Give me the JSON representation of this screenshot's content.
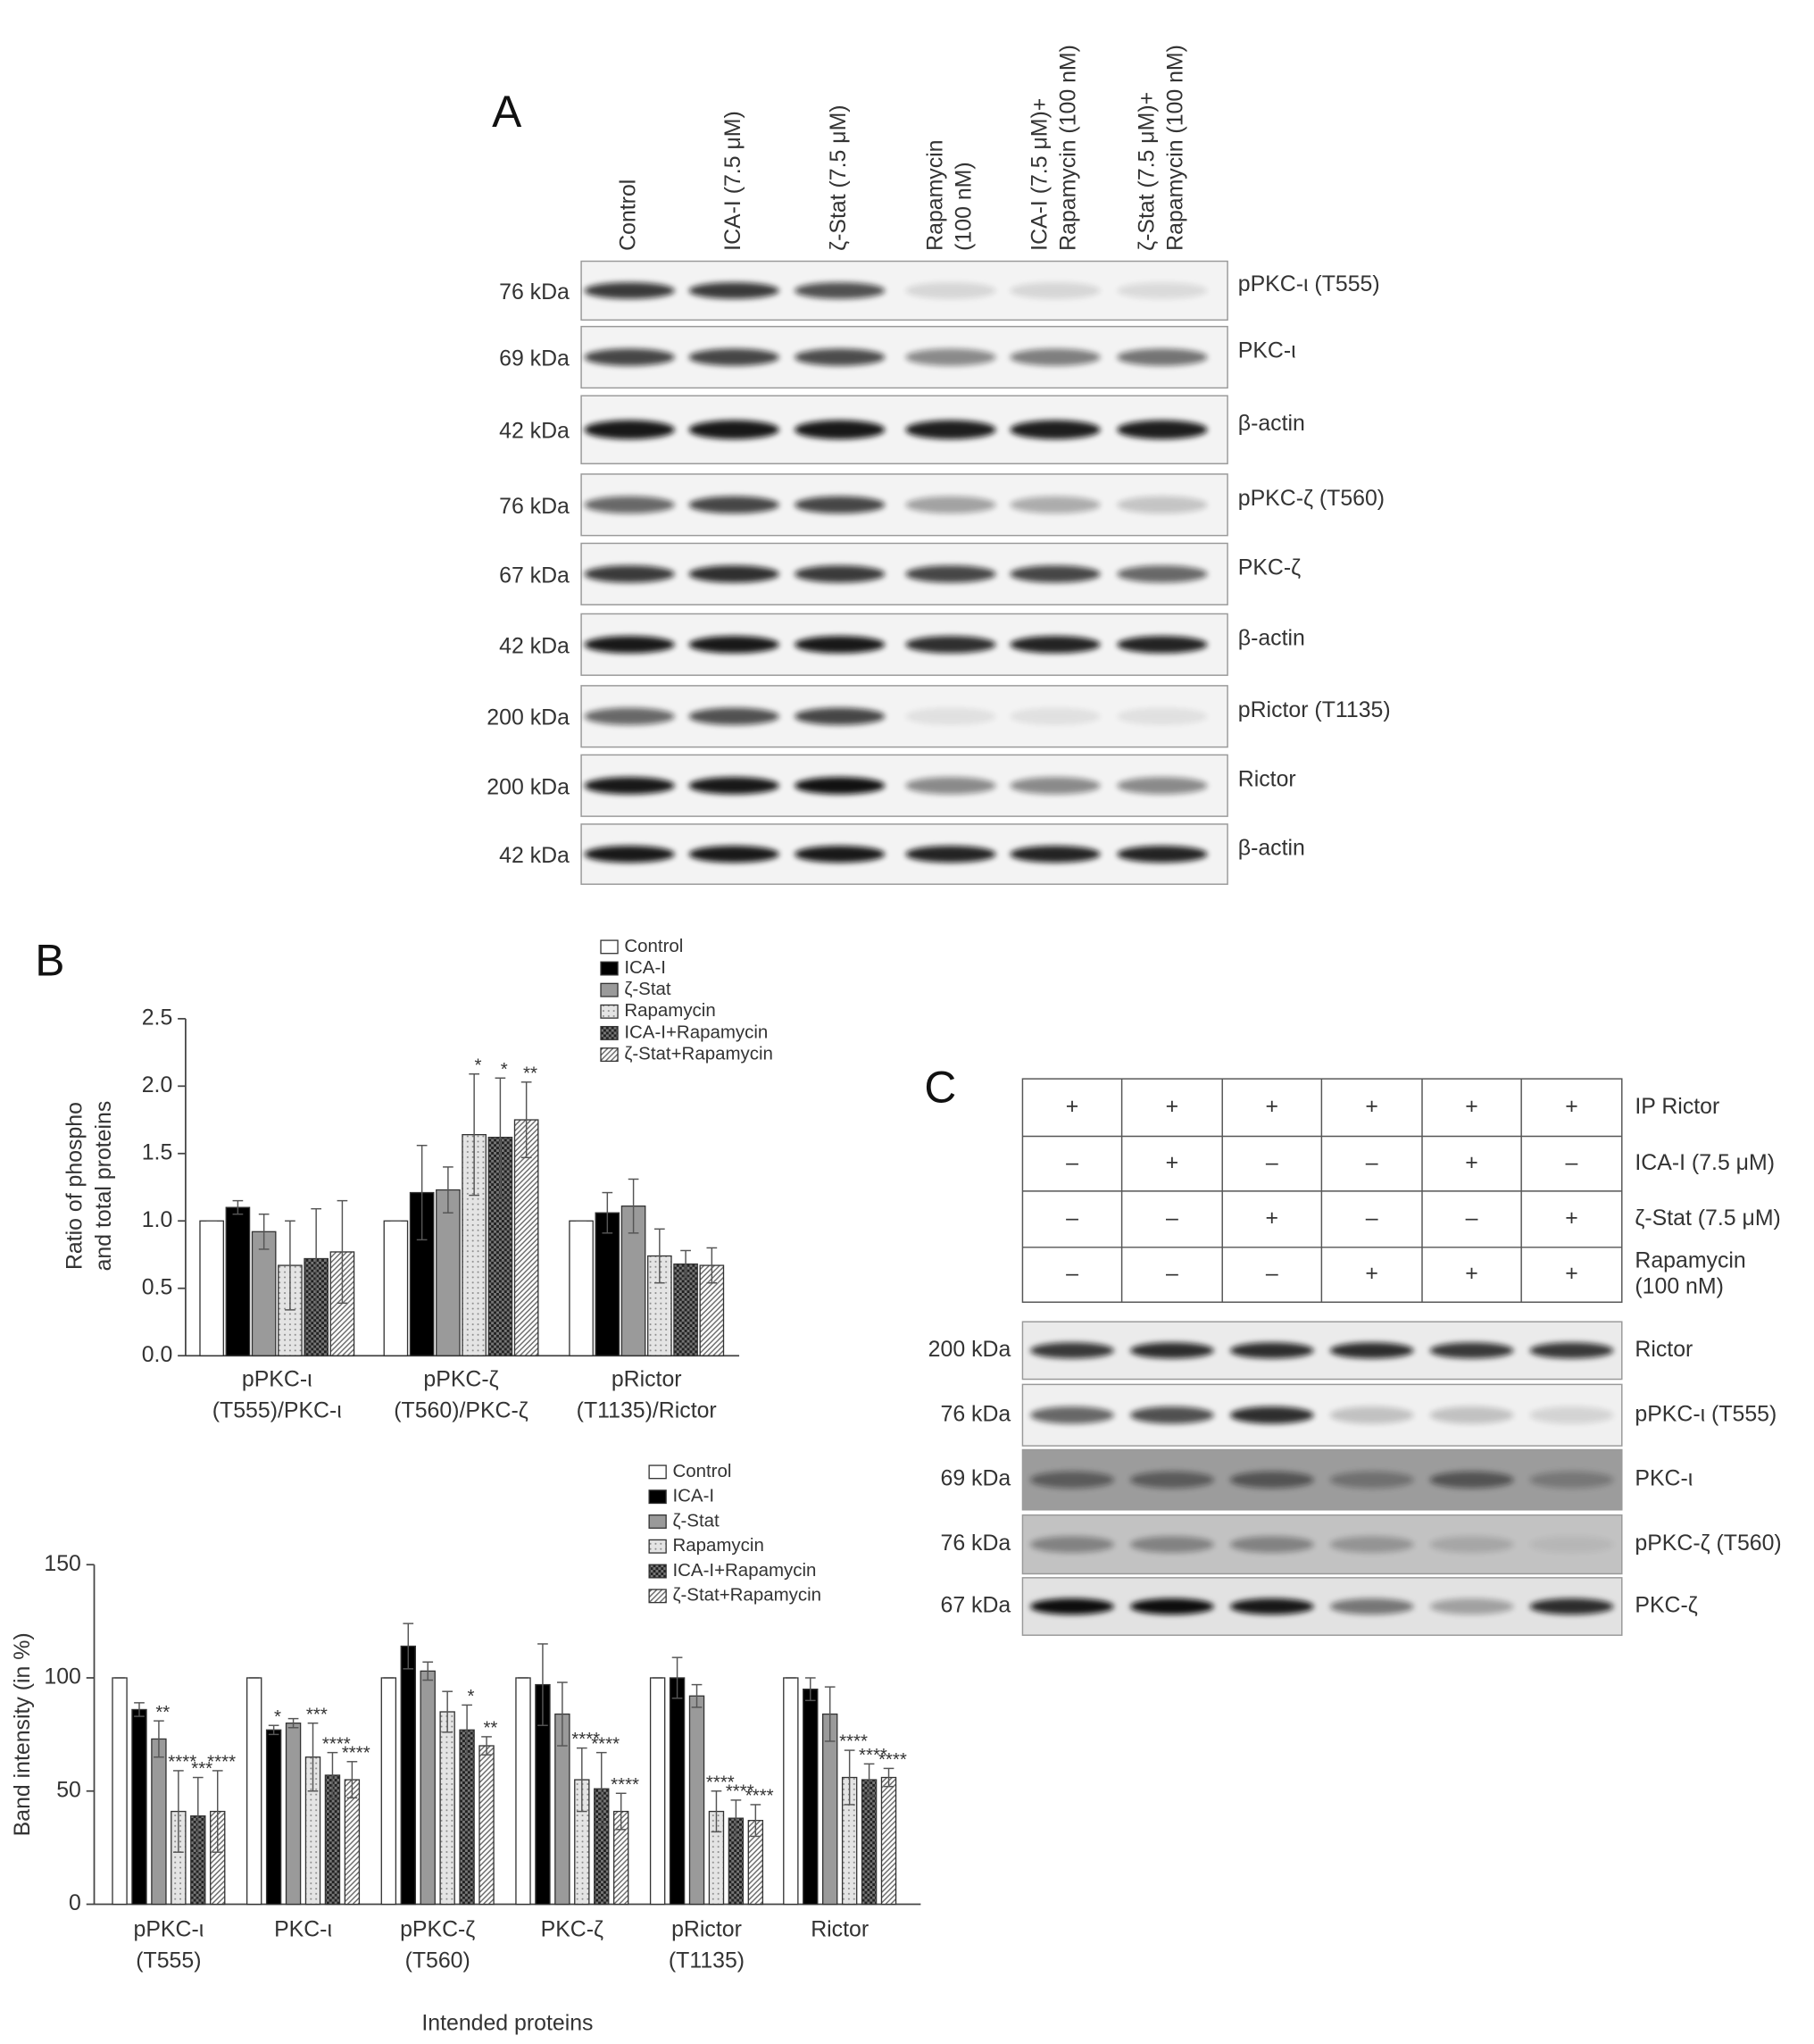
{
  "panel_a": {
    "label": "A",
    "lanes": [
      [
        "Control"
      ],
      [
        "ICA-I (7.5 μM)"
      ],
      [
        "ζ-Stat (7.5 μM)"
      ],
      [
        "Rapamycin",
        "(100 nM)"
      ],
      [
        "ICA-I (7.5 μM)+",
        "Rapamycin (100 nM)"
      ],
      [
        "ζ-Stat (7.5 μM)+",
        "Rapamycin (100 nM)"
      ]
    ],
    "blots": [
      {
        "kda": "76 kDa",
        "protein": "pPKC-ι (T555)"
      },
      {
        "kda": "69 kDa",
        "protein": "PKC-ι"
      },
      {
        "kda": "42 kDa",
        "protein": "β-actin"
      },
      {
        "kda": "76 kDa",
        "protein": "pPKC-ζ (T560)"
      },
      {
        "kda": "67 kDa",
        "protein": "PKC-ζ"
      },
      {
        "kda": "42 kDa",
        "protein": "β-actin"
      },
      {
        "kda": "200 kDa",
        "protein": "pRictor (T1135)"
      },
      {
        "kda": "200 kDa",
        "protein": "Rictor"
      },
      {
        "kda": "42 kDa",
        "protein": "β-actin"
      }
    ]
  },
  "chart_data": [
    {
      "type": "bar",
      "panel_label": "B",
      "y_label": [
        "Ratio of phospho",
        "and total proteins"
      ],
      "categories": [
        [
          "pPKC-ι",
          "(T555)/PKC-ι"
        ],
        [
          "pPKC-ζ",
          "(T560)/PKC-ζ"
        ],
        [
          "pRictor",
          "(T1135)/Rictor"
        ]
      ],
      "ylim": [
        0,
        2.5
      ],
      "yticks": [
        {
          "value": 0,
          "label": "0.0"
        },
        0.5,
        {
          "value": 1,
          "label": "1.0"
        },
        1.5,
        {
          "value": 2,
          "label": "2.0"
        },
        2.5
      ],
      "series": [
        {
          "name": "Control",
          "color": "#ffffff",
          "pattern": "solid",
          "values": [
            1.0,
            1.0,
            1.0
          ],
          "errors": [
            0,
            0,
            0
          ],
          "significance": [
            null,
            null,
            null
          ]
        },
        {
          "name": "ICA-I",
          "color": "#000000",
          "pattern": "solid",
          "values": [
            1.1,
            1.21,
            1.06
          ],
          "errors": [
            0.05,
            0.35,
            0.15
          ],
          "significance": [
            null,
            null,
            null
          ]
        },
        {
          "name": "ζ-Stat",
          "color": "#9a9a9a",
          "pattern": "solid",
          "values": [
            0.92,
            1.23,
            1.11
          ],
          "errors": [
            0.13,
            0.17,
            0.2
          ],
          "significance": [
            null,
            null,
            null
          ]
        },
        {
          "name": "Rapamycin",
          "color": "#e4e4e4",
          "pattern": "dots",
          "values": [
            0.67,
            1.64,
            0.74
          ],
          "errors": [
            0.33,
            0.45,
            0.2
          ],
          "significance": [
            null,
            "*",
            null
          ]
        },
        {
          "name": "ICA-I+Rapamycin",
          "color": "#222222",
          "pattern": "checker",
          "values": [
            0.72,
            1.62,
            0.68
          ],
          "errors": [
            0.37,
            0.44,
            0.1
          ],
          "significance": [
            null,
            "*",
            null
          ]
        },
        {
          "name": "ζ-Stat+Rapamycin",
          "color": "#ffffff",
          "pattern": "hatch",
          "values": [
            0.77,
            1.75,
            0.67
          ],
          "errors": [
            0.38,
            0.28,
            0.13
          ],
          "significance": [
            null,
            "**",
            null
          ]
        }
      ]
    },
    {
      "type": "bar",
      "y_label": [
        "Band intensity (in %)"
      ],
      "x_label": "Intended proteins",
      "categories": [
        [
          "pPKC-ι",
          "(T555)"
        ],
        [
          "PKC-ι"
        ],
        [
          "pPKC-ζ",
          "(T560)"
        ],
        [
          "PKC-ζ"
        ],
        [
          "pRictor",
          "(T1135)"
        ],
        [
          "Rictor"
        ]
      ],
      "ylim": [
        0,
        150
      ],
      "yticks": [
        0,
        50,
        100,
        150
      ],
      "series": [
        {
          "name": "Control",
          "color": "#ffffff",
          "pattern": "solid",
          "values": [
            100,
            100,
            100,
            100,
            100,
            100
          ],
          "errors": [
            0,
            0,
            0,
            0,
            0,
            0
          ],
          "significance": [
            null,
            null,
            null,
            null,
            null,
            null
          ]
        },
        {
          "name": "ICA-I",
          "color": "#000000",
          "pattern": "solid",
          "values": [
            86,
            77,
            114,
            97,
            100,
            95
          ],
          "errors": [
            3,
            2,
            10,
            18,
            9,
            5
          ],
          "significance": [
            null,
            "*",
            null,
            null,
            null,
            null
          ]
        },
        {
          "name": "ζ-Stat",
          "color": "#9a9a9a",
          "pattern": "solid",
          "values": [
            73,
            80,
            103,
            84,
            92,
            84
          ],
          "errors": [
            8,
            2,
            4,
            14,
            5,
            12
          ],
          "significance": [
            "**",
            null,
            null,
            null,
            null,
            null
          ]
        },
        {
          "name": "Rapamycin",
          "color": "#e4e4e4",
          "pattern": "dots",
          "values": [
            41,
            65,
            85,
            55,
            41,
            56
          ],
          "errors": [
            18,
            15,
            9,
            14,
            9,
            12
          ],
          "significance": [
            "****",
            "***",
            null,
            "****",
            "****",
            "****"
          ]
        },
        {
          "name": "ICA-I+Rapamycin",
          "color": "#222222",
          "pattern": "checker",
          "values": [
            39,
            57,
            77,
            51,
            38,
            55
          ],
          "errors": [
            17,
            10,
            11,
            16,
            8,
            7
          ],
          "significance": [
            "***",
            "****",
            "*",
            "****",
            "****",
            "****"
          ]
        },
        {
          "name": "ζ-Stat+Rapamycin",
          "color": "#ffffff",
          "pattern": "hatch",
          "values": [
            41,
            55,
            70,
            41,
            37,
            56
          ],
          "errors": [
            18,
            8,
            4,
            8,
            7,
            4
          ],
          "significance": [
            "****",
            "****",
            "**",
            "****",
            "****",
            "****"
          ]
        }
      ]
    }
  ],
  "panel_c": {
    "label": "C",
    "conditions": [
      {
        "name": [
          "IP Rictor"
        ],
        "cells": [
          "+",
          "+",
          "+",
          "+",
          "+",
          "+"
        ]
      },
      {
        "name": [
          "ICA-I (7.5 μM)"
        ],
        "cells": [
          "–",
          "+",
          "–",
          "–",
          "+",
          "–"
        ]
      },
      {
        "name": [
          "ζ-Stat (7.5 μM)"
        ],
        "cells": [
          "–",
          "–",
          "+",
          "–",
          "–",
          "+"
        ]
      },
      {
        "name": [
          "Rapamycin",
          "(100 nM)"
        ],
        "cells": [
          "–",
          "–",
          "–",
          "+",
          "+",
          "+"
        ]
      }
    ],
    "blots": [
      {
        "kda": "200 kDa",
        "protein": "Rictor"
      },
      {
        "kda": "76 kDa",
        "protein": "pPKC-ι (T555)"
      },
      {
        "kda": "69 kDa",
        "protein": "PKC-ι"
      },
      {
        "kda": "76 kDa",
        "protein": "pPKC-ζ (T560)"
      },
      {
        "kda": "67 kDa",
        "protein": "PKC-ζ"
      }
    ]
  }
}
